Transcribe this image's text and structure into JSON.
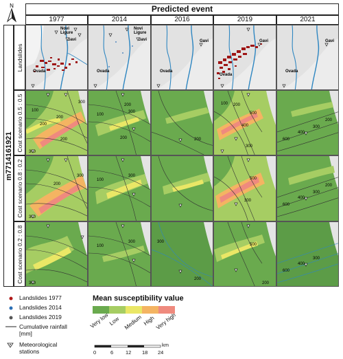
{
  "title": "Predicted event",
  "columns": [
    "1977",
    "2014",
    "2016",
    "2019",
    "2021"
  ],
  "model_id": "m7714161921",
  "rows": [
    "Landslides",
    "Cost scenario 0.5 : 0.5",
    "Cost scenario 0.8 : 0.2",
    "Cost scenario 0.2 : 0.8"
  ],
  "places": {
    "novi": "Novi",
    "ligure": "Ligure",
    "gavi": "Gavi",
    "ovada": "Ovada"
  },
  "contour_labels": {
    "c1977": [
      "200",
      "200",
      "300",
      "300",
      "200",
      "100"
    ],
    "c2014": [
      "300",
      "100",
      "200",
      "200"
    ],
    "c2016": [
      "300",
      "200"
    ],
    "c2019": [
      "500",
      "400",
      "300",
      "200",
      "200",
      "100"
    ],
    "c2021": [
      "200",
      "300",
      "400",
      "600",
      "300",
      "200"
    ]
  },
  "legend": {
    "landslides_1977": "Landslides 1977",
    "landslides_2014": "Landslides 2014",
    "landslides_2019": "Landslides 2019",
    "rainfall_line1": "Cumulative rainfall",
    "rainfall_line2": "[mm]",
    "stations_line1": "Meteorological",
    "stations_line2": "stations",
    "colors_dots": {
      "l1977": "#b01818",
      "l2014": "#2a6fb5",
      "l2019": "#555555"
    }
  },
  "susceptibility": {
    "title": "Mean susceptibility value",
    "classes": [
      "Very low",
      "Low",
      "Medium",
      "High",
      "Very high"
    ],
    "colors": [
      "#6aaa4e",
      "#a6cd63",
      "#eae766",
      "#f4b462",
      "#ef8a7e"
    ]
  },
  "scalebar": {
    "ticks": [
      "0",
      "6",
      "12",
      "18",
      "24"
    ],
    "unit": "km"
  },
  "north_label": "N"
}
